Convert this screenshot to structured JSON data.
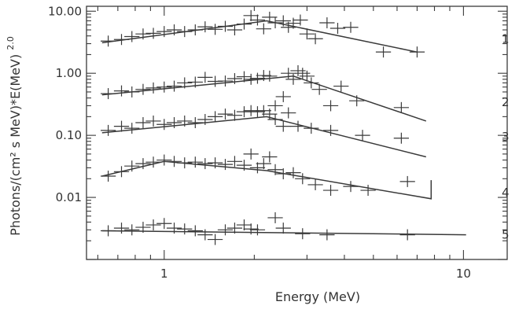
{
  "chart_data": {
    "type": "scatter",
    "xlabel": "Energy (MeV)",
    "ylabel": "Photons/(cm² s MeV)*E(MeV)",
    "ylabel_exponent": "2.0",
    "xscale": "log",
    "yscale": "log",
    "xlim": [
      0.55,
      14
    ],
    "ylim": [
      0.001,
      12
    ],
    "x_ticks": [
      {
        "value": 1,
        "label": "1"
      },
      {
        "value": 10,
        "label": "10"
      }
    ],
    "y_ticks": [
      {
        "value": 10,
        "label": "10.00"
      },
      {
        "value": 1,
        "label": "1.00"
      },
      {
        "value": 0.1,
        "label": "0.10"
      },
      {
        "value": 0.01,
        "label": "0.01"
      }
    ],
    "series": [
      {
        "name": "1",
        "label_at": 3.6,
        "model": [
          [
            0.62,
            3.1
          ],
          [
            2.2,
            7.0
          ],
          [
            7.0,
            2.2
          ]
        ],
        "points": [
          [
            0.65,
            3.3
          ],
          [
            0.72,
            3.5
          ],
          [
            0.78,
            3.9
          ],
          [
            0.85,
            4.3
          ],
          [
            0.92,
            4.4
          ],
          [
            1.0,
            4.7
          ],
          [
            1.08,
            5.0
          ],
          [
            1.17,
            4.7
          ],
          [
            1.27,
            5.0
          ],
          [
            1.37,
            5.6
          ],
          [
            1.48,
            5.1
          ],
          [
            1.6,
            5.7
          ],
          [
            1.72,
            5.0
          ],
          [
            1.85,
            6.2
          ],
          [
            1.95,
            8.5
          ],
          [
            2.05,
            7.2
          ],
          [
            2.15,
            5.2
          ],
          [
            2.25,
            8.0
          ],
          [
            2.35,
            6.5
          ],
          [
            2.5,
            7.0
          ],
          [
            2.6,
            5.5
          ],
          [
            2.7,
            6.4
          ],
          [
            2.85,
            7.2
          ],
          [
            3.0,
            4.3
          ],
          [
            3.2,
            3.6
          ],
          [
            3.5,
            6.5
          ],
          [
            3.8,
            5.3
          ],
          [
            4.2,
            5.5
          ],
          [
            5.4,
            2.2
          ],
          [
            7.0,
            2.2
          ]
        ]
      },
      {
        "name": "2",
        "label_at": 0.34,
        "model": [
          [
            0.62,
            0.45
          ],
          [
            2.7,
            0.9
          ],
          [
            7.5,
            0.17
          ]
        ],
        "points": [
          [
            0.65,
            0.47
          ],
          [
            0.72,
            0.52
          ],
          [
            0.78,
            0.5
          ],
          [
            0.85,
            0.55
          ],
          [
            0.92,
            0.58
          ],
          [
            1.0,
            0.6
          ],
          [
            1.08,
            0.62
          ],
          [
            1.17,
            0.7
          ],
          [
            1.27,
            0.72
          ],
          [
            1.37,
            0.86
          ],
          [
            1.48,
            0.74
          ],
          [
            1.6,
            0.75
          ],
          [
            1.72,
            0.82
          ],
          [
            1.85,
            0.88
          ],
          [
            1.95,
            0.8
          ],
          [
            2.05,
            0.83
          ],
          [
            2.15,
            0.92
          ],
          [
            2.25,
            0.9
          ],
          [
            2.35,
            0.3
          ],
          [
            2.5,
            0.42
          ],
          [
            2.6,
            1.0
          ],
          [
            2.7,
            0.8
          ],
          [
            2.8,
            1.1
          ],
          [
            2.9,
            1.0
          ],
          [
            3.0,
            0.9
          ],
          [
            3.1,
            0.7
          ],
          [
            3.3,
            0.55
          ],
          [
            3.6,
            0.3
          ],
          [
            3.9,
            0.62
          ],
          [
            4.4,
            0.36
          ],
          [
            6.2,
            0.28
          ]
        ]
      },
      {
        "name": "3",
        "label_at": 0.094,
        "model": [
          [
            0.62,
            0.11
          ],
          [
            2.2,
            0.2
          ],
          [
            7.5,
            0.045
          ]
        ],
        "points": [
          [
            0.65,
            0.12
          ],
          [
            0.72,
            0.14
          ],
          [
            0.78,
            0.13
          ],
          [
            0.85,
            0.16
          ],
          [
            0.92,
            0.17
          ],
          [
            1.0,
            0.15
          ],
          [
            1.08,
            0.16
          ],
          [
            1.17,
            0.17
          ],
          [
            1.27,
            0.16
          ],
          [
            1.37,
            0.18
          ],
          [
            1.48,
            0.2
          ],
          [
            1.6,
            0.22
          ],
          [
            1.72,
            0.21
          ],
          [
            1.85,
            0.24
          ],
          [
            1.95,
            0.25
          ],
          [
            2.05,
            0.24
          ],
          [
            2.15,
            0.25
          ],
          [
            2.25,
            0.22
          ],
          [
            2.35,
            0.18
          ],
          [
            2.5,
            0.14
          ],
          [
            2.6,
            0.23
          ],
          [
            2.8,
            0.14
          ],
          [
            3.1,
            0.13
          ],
          [
            3.6,
            0.12
          ],
          [
            4.6,
            0.1
          ],
          [
            6.2,
            0.09
          ]
        ]
      },
      {
        "name": "4",
        "label_at": 0.012,
        "model": [
          [
            0.62,
            0.022
          ],
          [
            1.0,
            0.038
          ],
          [
            2.2,
            0.027
          ],
          [
            7.8,
            0.0095
          ],
          [
            7.8,
            0.019
          ]
        ],
        "points": [
          [
            0.65,
            0.022
          ],
          [
            0.72,
            0.026
          ],
          [
            0.78,
            0.032
          ],
          [
            0.85,
            0.035
          ],
          [
            0.92,
            0.037
          ],
          [
            1.0,
            0.04
          ],
          [
            1.08,
            0.038
          ],
          [
            1.17,
            0.036
          ],
          [
            1.27,
            0.037
          ],
          [
            1.37,
            0.035
          ],
          [
            1.48,
            0.036
          ],
          [
            1.6,
            0.034
          ],
          [
            1.72,
            0.038
          ],
          [
            1.85,
            0.033
          ],
          [
            1.95,
            0.05
          ],
          [
            2.05,
            0.03
          ],
          [
            2.15,
            0.035
          ],
          [
            2.25,
            0.045
          ],
          [
            2.35,
            0.028
          ],
          [
            2.5,
            0.024
          ],
          [
            2.7,
            0.025
          ],
          [
            2.9,
            0.02
          ],
          [
            3.2,
            0.016
          ],
          [
            3.6,
            0.013
          ],
          [
            4.2,
            0.015
          ],
          [
            4.8,
            0.013
          ],
          [
            6.5,
            0.018
          ]
        ]
      },
      {
        "name": "5",
        "label_at": 0.0025,
        "model": [
          [
            0.62,
            0.0029
          ],
          [
            10.2,
            0.0025
          ]
        ],
        "points": [
          [
            0.65,
            0.0029
          ],
          [
            0.72,
            0.0032
          ],
          [
            0.78,
            0.003
          ],
          [
            0.85,
            0.0033
          ],
          [
            0.92,
            0.0036
          ],
          [
            1.0,
            0.0038
          ],
          [
            1.08,
            0.0032
          ],
          [
            1.17,
            0.0031
          ],
          [
            1.27,
            0.0029
          ],
          [
            1.37,
            0.0025
          ],
          [
            1.48,
            0.0021
          ],
          [
            1.6,
            0.003
          ],
          [
            1.72,
            0.0032
          ],
          [
            1.85,
            0.0036
          ],
          [
            1.95,
            0.0031
          ],
          [
            2.05,
            0.003
          ],
          [
            2.35,
            0.0047
          ],
          [
            2.5,
            0.0032
          ],
          [
            2.9,
            0.0026
          ],
          [
            3.5,
            0.0025
          ],
          [
            6.5,
            0.0025
          ]
        ]
      }
    ]
  }
}
